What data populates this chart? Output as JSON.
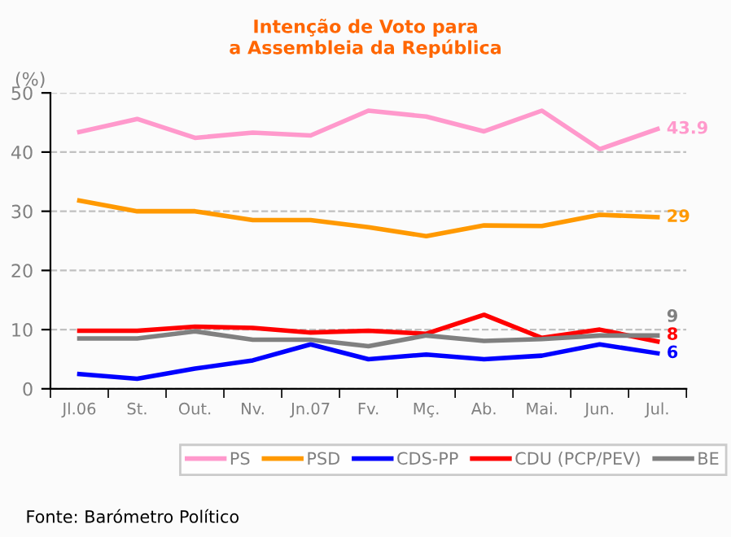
{
  "chart_data": {
    "type": "line",
    "title": "Intenção de Voto para\na Assembleia da República",
    "ylabel": "(%)",
    "categories": [
      "Jl.06",
      "St.",
      "Out.",
      "Nv.",
      "Jn.07",
      "Fv.",
      "Mç.",
      "Ab.",
      "Mai.",
      "Jun.",
      "Jul."
    ],
    "series": [
      {
        "name": "PS",
        "color": "#ff99cc",
        "values": [
          43.4,
          45.6,
          42.4,
          43.3,
          42.8,
          47,
          46,
          43.5,
          47,
          40.5,
          43.9
        ],
        "value_labels": [
          null,
          null,
          null,
          null,
          null,
          null,
          null,
          null,
          null,
          null,
          "43.9"
        ]
      },
      {
        "name": "PSD",
        "color": "#ff9900",
        "values": [
          31.8,
          30,
          30,
          28.5,
          28.5,
          27.3,
          25.8,
          27.6,
          27.5,
          29.4,
          29
        ],
        "value_labels": [
          null,
          null,
          null,
          null,
          null,
          null,
          null,
          null,
          null,
          null,
          "29"
        ]
      },
      {
        "name": "CDS-PP",
        "color": "#0000ff",
        "values": [
          2.5,
          1.7,
          3.4,
          4.8,
          7.5,
          5.0,
          5.8,
          5.0,
          5.6,
          7.5,
          6
        ],
        "value_labels": [
          null,
          null,
          null,
          null,
          null,
          null,
          null,
          null,
          null,
          null,
          "6"
        ]
      },
      {
        "name": "CDU (PCP/PEV)",
        "color": "#ff0000",
        "values": [
          9.8,
          9.8,
          10.5,
          10.3,
          9.5,
          9.8,
          9.3,
          12.5,
          8.6,
          10.0,
          8
        ],
        "value_labels": [
          null,
          null,
          null,
          null,
          null,
          null,
          null,
          null,
          null,
          null,
          "8"
        ]
      },
      {
        "name": "BE",
        "color": "#808080",
        "values": [
          8.5,
          8.5,
          9.7,
          8.3,
          8.3,
          7.2,
          9.0,
          8.1,
          8.4,
          9.0,
          9
        ],
        "value_labels": [
          null,
          null,
          null,
          null,
          null,
          null,
          null,
          null,
          null,
          null,
          "9"
        ]
      }
    ],
    "ylim": [
      0,
      50
    ],
    "yticks": [
      0,
      10,
      20,
      30,
      40,
      50
    ],
    "grid": "y",
    "legend": "bottom",
    "marker": "none",
    "line_style": "solid",
    "annotations": [
      "Fonte: Barómetro Político"
    ]
  }
}
